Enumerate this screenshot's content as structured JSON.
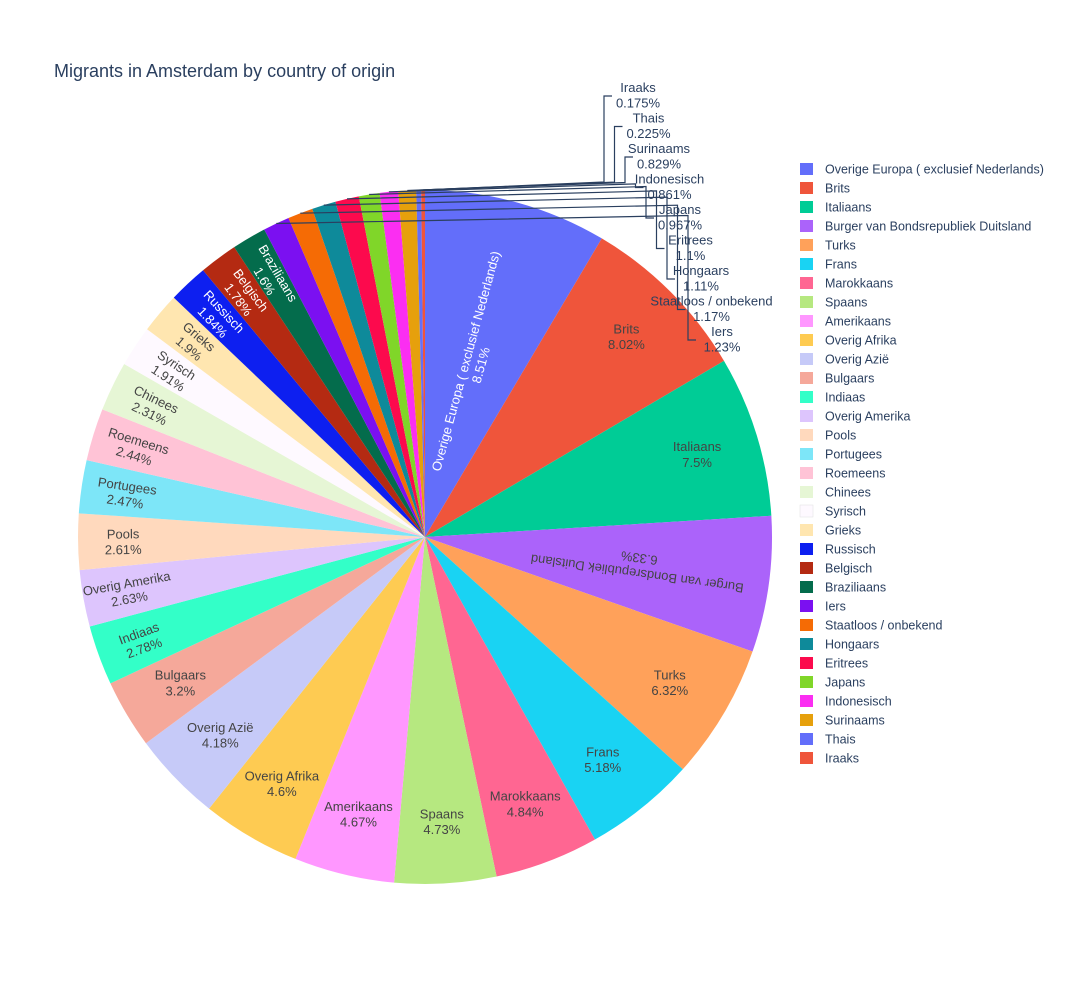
{
  "chart_data": {
    "type": "pie",
    "title": "Migrants in Amsterdam by country of origin",
    "sort": "descending",
    "direction": "clockwise",
    "textinfo": "label+percent",
    "legend_placement": "right",
    "slices": [
      {
        "label": "Overige Europa ( exclusief Nederlands)",
        "percent": 8.51,
        "percent_label": "8.51%",
        "color": "#636efa"
      },
      {
        "label": "Brits",
        "percent": 8.02,
        "percent_label": "8.02%",
        "color": "#EF553B"
      },
      {
        "label": "Italiaans",
        "percent": 7.5,
        "percent_label": "7.5%",
        "color": "#00cc96"
      },
      {
        "label": "Burger van Bondsrepubliek Duitsland",
        "percent": 6.33,
        "percent_label": "6.33%",
        "color": "#ab63fa"
      },
      {
        "label": "Turks",
        "percent": 6.32,
        "percent_label": "6.32%",
        "color": "#FFA15A"
      },
      {
        "label": "Frans",
        "percent": 5.18,
        "percent_label": "5.18%",
        "color": "#19d3f3"
      },
      {
        "label": "Marokkaans",
        "percent": 4.84,
        "percent_label": "4.84%",
        "color": "#FF6692"
      },
      {
        "label": "Spaans",
        "percent": 4.73,
        "percent_label": "4.73%",
        "color": "#B6E880"
      },
      {
        "label": "Amerikaans",
        "percent": 4.67,
        "percent_label": "4.67%",
        "color": "#FF97FF"
      },
      {
        "label": "Overig Afrika",
        "percent": 4.6,
        "percent_label": "4.6%",
        "color": "#FECB52"
      },
      {
        "label": "Overig Azië",
        "percent": 4.18,
        "percent_label": "4.18%",
        "color": "#c6caf8"
      },
      {
        "label": "Bulgaars",
        "percent": 3.2,
        "percent_label": "3.2%",
        "color": "#f5a89a"
      },
      {
        "label": "Indiaas",
        "percent": 2.78,
        "percent_label": "2.78%",
        "color": "#33ffc8"
      },
      {
        "label": "Overig Amerika",
        "percent": 2.63,
        "percent_label": "2.63%",
        "color": "#ddc5fd"
      },
      {
        "label": "Pools",
        "percent": 2.61,
        "percent_label": "2.61%",
        "color": "#ffd9bd"
      },
      {
        "label": "Portugees",
        "percent": 2.47,
        "percent_label": "2.47%",
        "color": "#7de6f8"
      },
      {
        "label": "Roemeens",
        "percent": 2.44,
        "percent_label": "2.44%",
        "color": "#ffc3d6"
      },
      {
        "label": "Chinees",
        "percent": 2.31,
        "percent_label": "2.31%",
        "color": "#e6f6d5"
      },
      {
        "label": "Syrisch",
        "percent": 1.91,
        "percent_label": "1.91%",
        "color": "#fef9ff"
      },
      {
        "label": "Grieks",
        "percent": 1.9,
        "percent_label": "1.9%",
        "color": "#ffe6b0"
      },
      {
        "label": "Russisch",
        "percent": 1.84,
        "percent_label": "1.84%",
        "color": "#0d1ff0"
      },
      {
        "label": "Belgisch",
        "percent": 1.78,
        "percent_label": "1.78%",
        "color": "#b42a12"
      },
      {
        "label": "Braziliaans",
        "percent": 1.6,
        "percent_label": "1.6%",
        "color": "#046c4c"
      },
      {
        "label": "Iers",
        "percent": 1.23,
        "percent_label": "1.23%",
        "color": "#7b10f1"
      },
      {
        "label": "Staatloos / onbekend",
        "percent": 1.17,
        "percent_label": "1.17%",
        "color": "#f56b05"
      },
      {
        "label": "Hongaars",
        "percent": 1.11,
        "percent_label": "1.11%",
        "color": "#0e8a9a"
      },
      {
        "label": "Eritrees",
        "percent": 1.1,
        "percent_label": "1.1%",
        "color": "#fc0a4d"
      },
      {
        "label": "Japans",
        "percent": 0.967,
        "percent_label": "0.967%",
        "color": "#80d629"
      },
      {
        "label": "Indonesisch",
        "percent": 0.861,
        "percent_label": "0.861%",
        "color": "#fb2ef2"
      },
      {
        "label": "Surinaams",
        "percent": 0.829,
        "percent_label": "0.829%",
        "color": "#e6a00c"
      },
      {
        "label": "Thais",
        "percent": 0.225,
        "percent_label": "0.225%",
        "color": "#636efa"
      },
      {
        "label": "Iraaks",
        "percent": 0.175,
        "percent_label": "0.175%",
        "color": "#EF553B"
      }
    ]
  }
}
